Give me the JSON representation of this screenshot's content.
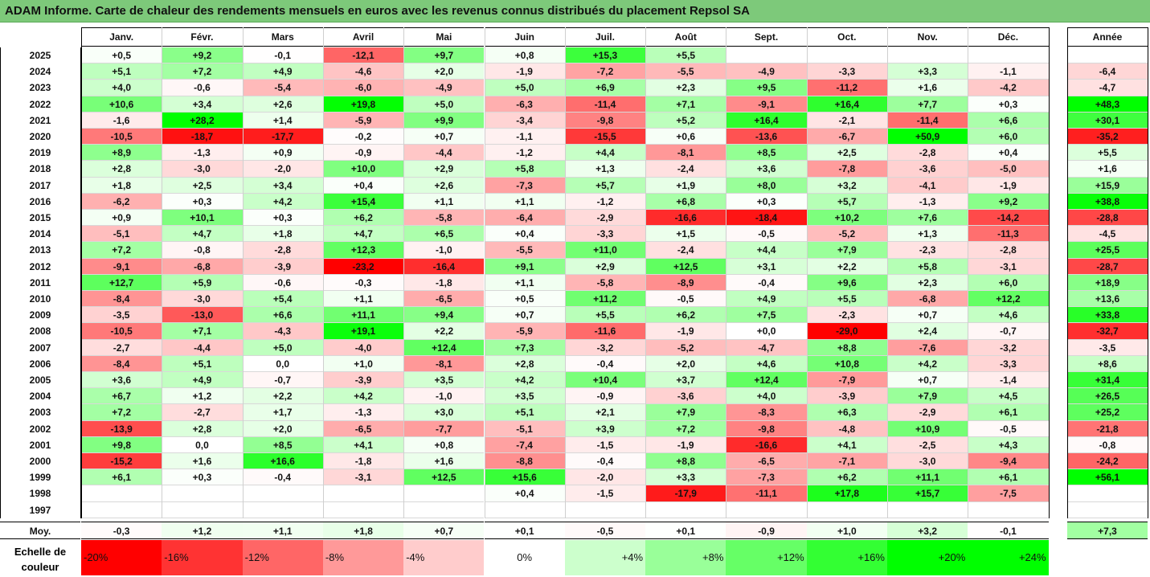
{
  "title": "ADAM Informe. Carte de chaleur des rendements mensuels en euros avec les revenus connus distribués du placement Repsol SA",
  "chart_data": {
    "type": "heatmap",
    "title": "ADAM Informe. Carte de chaleur des rendements mensuels en euros avec les revenus connus distribués du placement Repsol SA",
    "columns": [
      "Janv.",
      "Févr.",
      "Mars",
      "Avril",
      "Mai",
      "Juin",
      "Juil.",
      "Août",
      "Sept.",
      "Oct.",
      "Nov.",
      "Déc."
    ],
    "annual_label": "Année",
    "rows": [
      {
        "year": "2025",
        "values": [
          "+0,5",
          "+9,2",
          "-0,1",
          "-12,1",
          "+9,7",
          "+0,8",
          "+15,3",
          "+5,5",
          "",
          "",
          "",
          ""
        ],
        "annual": ""
      },
      {
        "year": "2024",
        "values": [
          "+5,1",
          "+7,2",
          "+4,9",
          "-4,6",
          "+2,0",
          "-1,9",
          "-7,2",
          "-5,5",
          "-4,9",
          "-3,3",
          "+3,3",
          "-1,1"
        ],
        "annual": "-6,4"
      },
      {
        "year": "2023",
        "values": [
          "+4,0",
          "-0,6",
          "-5,4",
          "-6,0",
          "-4,9",
          "+5,0",
          "+6,9",
          "+2,3",
          "+9,5",
          "-11,2",
          "+1,6",
          "-4,2"
        ],
        "annual": "-4,7"
      },
      {
        "year": "2022",
        "values": [
          "+10,6",
          "+3,4",
          "+2,6",
          "+19,8",
          "+5,0",
          "-6,3",
          "-11,4",
          "+7,1",
          "-9,1",
          "+16,4",
          "+7,7",
          "+0,3"
        ],
        "annual": "+48,3"
      },
      {
        "year": "2021",
        "values": [
          "-1,6",
          "+28,2",
          "+1,4",
          "-5,9",
          "+9,9",
          "-3,4",
          "-9,8",
          "+5,2",
          "+16,4",
          "-2,1",
          "-11,4",
          "+6,6"
        ],
        "annual": "+30,1"
      },
      {
        "year": "2020",
        "values": [
          "-10,5",
          "-18,7",
          "-17,7",
          "-0,2",
          "+0,7",
          "-1,1",
          "-15,5",
          "+0,6",
          "-13,6",
          "-6,7",
          "+50,9",
          "+6,0"
        ],
        "annual": "-35,2"
      },
      {
        "year": "2019",
        "values": [
          "+8,9",
          "-1,3",
          "+0,9",
          "-0,9",
          "-4,4",
          "-1,2",
          "+4,4",
          "-8,1",
          "+8,5",
          "+2,5",
          "-2,8",
          "+0,4"
        ],
        "annual": "+5,5"
      },
      {
        "year": "2018",
        "values": [
          "+2,8",
          "-3,0",
          "-2,0",
          "+10,0",
          "+2,9",
          "+5,8",
          "+1,3",
          "-2,4",
          "+3,6",
          "-7,8",
          "-3,6",
          "-5,0"
        ],
        "annual": "+1,6"
      },
      {
        "year": "2017",
        "values": [
          "+1,8",
          "+2,5",
          "+3,4",
          "+0,4",
          "+2,6",
          "-7,3",
          "+5,7",
          "+1,9",
          "+8,0",
          "+3,2",
          "-4,1",
          "-1,9"
        ],
        "annual": "+15,9"
      },
      {
        "year": "2016",
        "values": [
          "-6,2",
          "+0,3",
          "+4,2",
          "+15,4",
          "+1,1",
          "+1,1",
          "-1,2",
          "+6,8",
          "+0,3",
          "+5,7",
          "-1,3",
          "+9,2"
        ],
        "annual": "+38,8"
      },
      {
        "year": "2015",
        "values": [
          "+0,9",
          "+10,1",
          "+0,3",
          "+6,2",
          "-5,8",
          "-6,4",
          "-2,9",
          "-16,6",
          "-18,4",
          "+10,2",
          "+7,6",
          "-14,2"
        ],
        "annual": "-28,8"
      },
      {
        "year": "2014",
        "values": [
          "-5,1",
          "+4,7",
          "+1,8",
          "+4,7",
          "+6,5",
          "+0,4",
          "-3,3",
          "+1,5",
          "-0,5",
          "-5,2",
          "+1,3",
          "-11,3"
        ],
        "annual": "-4,5"
      },
      {
        "year": "2013",
        "values": [
          "+7,2",
          "-0,8",
          "-2,8",
          "+12,3",
          "-1,0",
          "-5,5",
          "+11,0",
          "-2,4",
          "+4,4",
          "+7,9",
          "-2,3",
          "-2,8"
        ],
        "annual": "+25,5"
      },
      {
        "year": "2012",
        "values": [
          "-9,1",
          "-6,8",
          "-3,9",
          "-23,2",
          "-16,4",
          "+9,1",
          "+2,9",
          "+12,5",
          "+3,1",
          "+2,2",
          "+5,8",
          "-3,1"
        ],
        "annual": "-28,7"
      },
      {
        "year": "2011",
        "values": [
          "+12,7",
          "+5,9",
          "-0,6",
          "-0,3",
          "-1,8",
          "+1,1",
          "-5,8",
          "-8,9",
          "-0,4",
          "+9,6",
          "+2,3",
          "+6,0"
        ],
        "annual": "+18,9"
      },
      {
        "year": "2010",
        "values": [
          "-8,4",
          "-3,0",
          "+5,4",
          "+1,1",
          "-6,5",
          "+0,5",
          "+11,2",
          "-0,5",
          "+4,9",
          "+5,5",
          "-6,8",
          "+12,2"
        ],
        "annual": "+13,6"
      },
      {
        "year": "2009",
        "values": [
          "-3,5",
          "-13,0",
          "+6,6",
          "+11,1",
          "+9,4",
          "+0,7",
          "+5,5",
          "+6,2",
          "+7,5",
          "-2,3",
          "+0,7",
          "+4,6"
        ],
        "annual": "+33,8"
      },
      {
        "year": "2008",
        "values": [
          "-10,5",
          "+7,1",
          "-4,3",
          "+19,1",
          "+2,2",
          "-5,9",
          "-11,6",
          "-1,9",
          "+0,0",
          "-29,0",
          "+2,4",
          "-0,7"
        ],
        "annual": "-32,7"
      },
      {
        "year": "2007",
        "values": [
          "-2,7",
          "-4,4",
          "+5,0",
          "-4,0",
          "+12,4",
          "+7,3",
          "-3,2",
          "-5,2",
          "-4,7",
          "+8,8",
          "-7,6",
          "-3,2"
        ],
        "annual": "-3,5"
      },
      {
        "year": "2006",
        "values": [
          "-8,4",
          "+5,1",
          "0,0",
          "+1,0",
          "-8,1",
          "+2,8",
          "-0,4",
          "+2,0",
          "+4,6",
          "+10,8",
          "+4,2",
          "-3,3"
        ],
        "annual": "+8,6"
      },
      {
        "year": "2005",
        "values": [
          "+3,6",
          "+4,9",
          "-0,7",
          "-3,9",
          "+3,5",
          "+4,2",
          "+10,4",
          "+3,7",
          "+12,4",
          "-7,9",
          "+0,7",
          "-1,4"
        ],
        "annual": "+31,4"
      },
      {
        "year": "2004",
        "values": [
          "+6,7",
          "+1,2",
          "+2,2",
          "+4,2",
          "-1,0",
          "+3,5",
          "-0,9",
          "-3,6",
          "+4,0",
          "-3,9",
          "+7,9",
          "+4,5"
        ],
        "annual": "+26,5"
      },
      {
        "year": "2003",
        "values": [
          "+7,2",
          "-2,7",
          "+1,7",
          "-1,3",
          "+3,0",
          "+5,1",
          "+2,1",
          "+7,9",
          "-8,3",
          "+6,3",
          "-2,9",
          "+6,1"
        ],
        "annual": "+25,2"
      },
      {
        "year": "2002",
        "values": [
          "-13,9",
          "+2,8",
          "+2,0",
          "-6,5",
          "-7,7",
          "-5,1",
          "+3,9",
          "+7,2",
          "-9,8",
          "-4,8",
          "+10,9",
          "-0,5"
        ],
        "annual": "-21,8"
      },
      {
        "year": "2001",
        "values": [
          "+9,8",
          "0,0",
          "+8,5",
          "+4,1",
          "+0,8",
          "-7,4",
          "-1,5",
          "-1,9",
          "-16,6",
          "+4,1",
          "-2,5",
          "+4,3"
        ],
        "annual": "-0,8"
      },
      {
        "year": "2000",
        "values": [
          "-15,2",
          "+1,6",
          "+16,6",
          "-1,8",
          "+1,6",
          "-8,8",
          "-0,4",
          "+8,8",
          "-6,5",
          "-7,1",
          "-3,0",
          "-9,4"
        ],
        "annual": "-24,2"
      },
      {
        "year": "1999",
        "values": [
          "+6,1",
          "+0,3",
          "-0,4",
          "-3,1",
          "+12,5",
          "+15,6",
          "-2,0",
          "+3,3",
          "-7,3",
          "+6,2",
          "+11,1",
          "+6,1"
        ],
        "annual": "+56,1"
      },
      {
        "year": "1998",
        "values": [
          "",
          "",
          "",
          "",
          "",
          "+0,4",
          "-1,5",
          "-17,9",
          "-11,1",
          "+17,8",
          "+15,7",
          "-7,5"
        ],
        "annual": ""
      },
      {
        "year": "1997",
        "values": [
          "",
          "",
          "",
          "",
          "",
          "",
          "",
          "",
          "",
          "",
          "",
          ""
        ],
        "annual": ""
      }
    ],
    "average": {
      "label": "Moy.",
      "values": [
        "-0,3",
        "+1,2",
        "+1,1",
        "+1,8",
        "+0,7",
        "+0,1",
        "-0,5",
        "+0,1",
        "-0,9",
        "+1,0",
        "+3,2",
        "-0,1"
      ],
      "annual": "+7,3"
    },
    "legend": {
      "label_line1": "Echelle de",
      "label_line2": "couleur",
      "stops": [
        {
          "label": "-20%",
          "value": -20
        },
        {
          "label": "-16%",
          "value": -16
        },
        {
          "label": "-12%",
          "value": -12
        },
        {
          "label": "-8%",
          "value": -8
        },
        {
          "label": "-4%",
          "value": -4
        },
        {
          "label": "0%",
          "value": 0
        },
        {
          "label": "+4%",
          "value": 4
        },
        {
          "label": "+8%",
          "value": 8
        },
        {
          "label": "+12%",
          "value": 12
        },
        {
          "label": "+16%",
          "value": 16
        },
        {
          "label": "+20%",
          "value": 20
        },
        {
          "label": "+24%",
          "value": 24
        }
      ]
    },
    "colors": {
      "negative_max": "#ff0000",
      "positive_max": "#00ff00",
      "neutral": "#ffffff",
      "title_bar": "#7dc97a"
    }
  }
}
